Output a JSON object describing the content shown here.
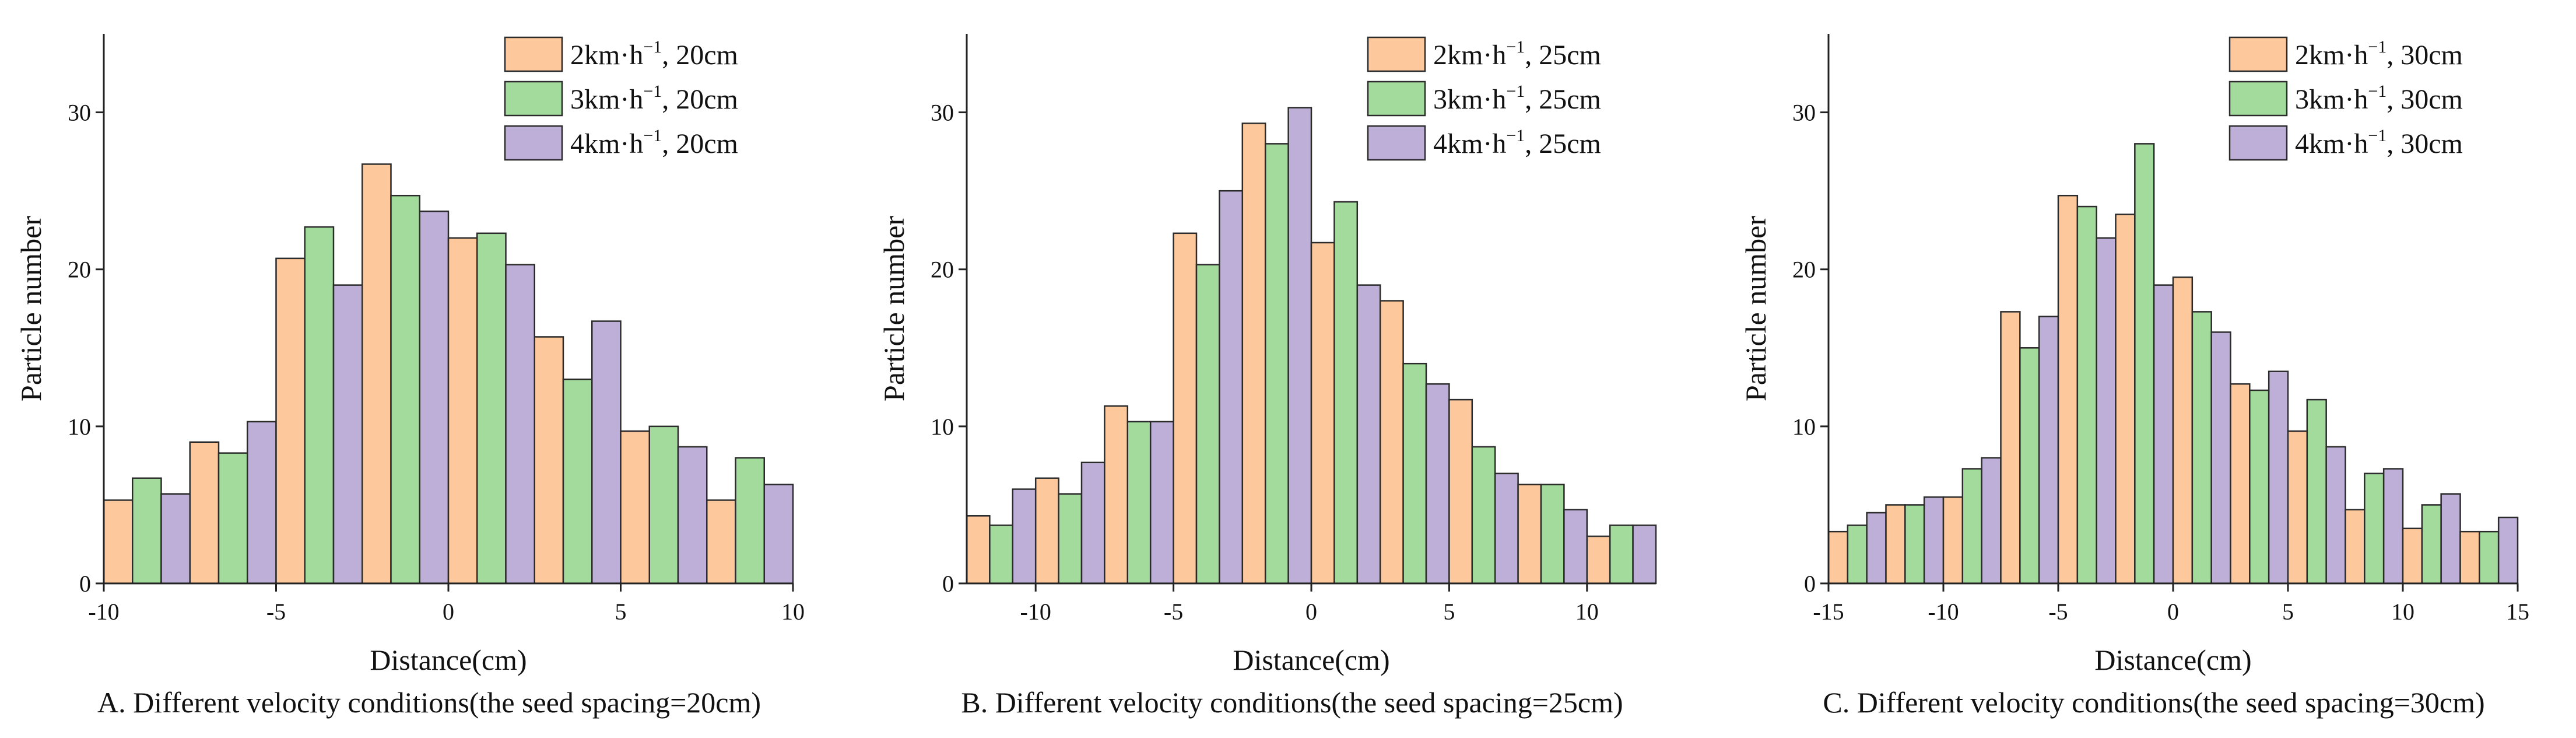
{
  "colors": {
    "series1": "#FDC89B",
    "series2": "#A2DB9C",
    "series3": "#BDAFD8",
    "edge": "#2b2b2b"
  },
  "chart_data": [
    {
      "type": "bar",
      "caption": "A. Different velocity conditions(the seed spacing=20cm)",
      "xlabel": "Distance(cm)",
      "ylabel": "Particle number",
      "xlim": [
        -10,
        10
      ],
      "ylim": [
        0,
        35
      ],
      "xticks": [
        -10,
        -5,
        0,
        5,
        10
      ],
      "yticks": [
        0,
        10,
        20,
        30
      ],
      "bin_width": 2.5,
      "bin_centers": [
        -8.75,
        -6.25,
        -3.75,
        -1.25,
        1.25,
        3.75,
        6.25,
        8.75
      ],
      "series": [
        {
          "name": "2km·h⁻¹, 20cm",
          "values": [
            5.3,
            9.0,
            20.7,
            26.7,
            22.0,
            15.7,
            9.7,
            5.3
          ]
        },
        {
          "name": "3km·h⁻¹, 20cm",
          "values": [
            6.7,
            8.3,
            22.7,
            24.7,
            22.3,
            13.0,
            10.0,
            8.0
          ]
        },
        {
          "name": "4km·h⁻¹, 20cm",
          "values": [
            5.7,
            10.3,
            19.0,
            23.7,
            20.3,
            16.7,
            8.7,
            6.3
          ]
        }
      ]
    },
    {
      "type": "bar",
      "caption": "B. Different velocity conditions(the seed spacing=25cm)",
      "xlabel": "Distance(cm)",
      "ylabel": "Particle number",
      "xlim": [
        -12.5,
        12.5
      ],
      "ylim": [
        0,
        35
      ],
      "xticks": [
        -10,
        -5,
        0,
        5,
        10
      ],
      "yticks": [
        0,
        10,
        20,
        30
      ],
      "bin_width": 2.5,
      "bin_centers": [
        -11.25,
        -8.75,
        -6.25,
        -3.75,
        -1.25,
        1.25,
        3.75,
        6.25,
        8.75,
        11.25
      ],
      "series": [
        {
          "name": "2km·h⁻¹, 25cm",
          "values": [
            4.3,
            6.7,
            11.3,
            22.3,
            29.3,
            21.7,
            18.0,
            11.7,
            6.3,
            3.0
          ]
        },
        {
          "name": "3km·h⁻¹, 25cm",
          "values": [
            3.7,
            5.7,
            10.3,
            20.3,
            28.0,
            24.3,
            14.0,
            8.7,
            6.3,
            3.7
          ]
        },
        {
          "name": "4km·h⁻¹, 25cm",
          "values": [
            6.0,
            7.7,
            10.3,
            25.0,
            30.3,
            19.0,
            12.7,
            7.0,
            4.7,
            3.7
          ]
        }
      ]
    },
    {
      "type": "bar",
      "caption": "C. Different velocity conditions(the seed spacing=30cm)",
      "xlabel": "Distance(cm)",
      "ylabel": "Particle number",
      "xlim": [
        -15,
        15
      ],
      "ylim": [
        0,
        35
      ],
      "xticks": [
        -15,
        -10,
        -5,
        0,
        5,
        10,
        15
      ],
      "yticks": [
        0,
        10,
        20,
        30
      ],
      "bin_width": 2.5,
      "bin_centers": [
        -13.75,
        -11.25,
        -8.75,
        -6.25,
        -3.75,
        -1.25,
        1.25,
        3.75,
        6.25,
        8.75,
        11.25,
        13.75
      ],
      "series": [
        {
          "name": "2km·h⁻¹, 30cm",
          "values": [
            3.3,
            5.0,
            5.5,
            17.3,
            24.7,
            23.5,
            19.5,
            12.7,
            9.7,
            4.7,
            3.5,
            3.3
          ]
        },
        {
          "name": "3km·h⁻¹, 30cm",
          "values": [
            3.7,
            5.0,
            7.3,
            15.0,
            24.0,
            28.0,
            17.3,
            12.3,
            11.7,
            7.0,
            5.0,
            3.3
          ]
        },
        {
          "name": "4km·h⁻¹, 30cm",
          "values": [
            4.5,
            5.5,
            8.0,
            17.0,
            22.0,
            19.0,
            16.0,
            13.5,
            8.7,
            7.3,
            5.7,
            4.2
          ]
        }
      ]
    }
  ]
}
